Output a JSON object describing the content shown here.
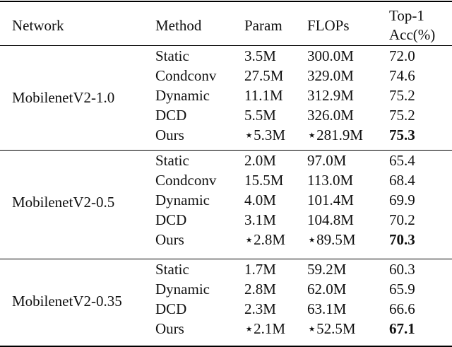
{
  "header": {
    "network": "Network",
    "method": "Method",
    "param": "Param",
    "flops": "FLOPs",
    "acc_line1": "Top-1",
    "acc_line2": "Acc(%)"
  },
  "groups": [
    {
      "network": "MobilenetV2-1.0",
      "rows": [
        {
          "method": "Static",
          "param": "3.5M",
          "flops": "300.0M",
          "acc": "72.0"
        },
        {
          "method": "Condconv",
          "param": "27.5M",
          "flops": "329.0M",
          "acc": "74.6"
        },
        {
          "method": "Dynamic",
          "param": "11.1M",
          "flops": "312.9M",
          "acc": "75.2"
        },
        {
          "method": "DCD",
          "param": "5.5M",
          "flops": "326.0M",
          "acc": "75.2"
        },
        {
          "method": "Ours",
          "param": "⋆5.3M",
          "flops": "⋆281.9M",
          "acc": "75.3",
          "bold": true
        }
      ]
    },
    {
      "network": "MobilenetV2-0.5",
      "rows": [
        {
          "method": "Static",
          "param": "2.0M",
          "flops": "97.0M",
          "acc": "65.4"
        },
        {
          "method": "Condconv",
          "param": "15.5M",
          "flops": "113.0M",
          "acc": "68.4"
        },
        {
          "method": "Dynamic",
          "param": "4.0M",
          "flops": "101.4M",
          "acc": "69.9"
        },
        {
          "method": "DCD",
          "param": "3.1M",
          "flops": "104.8M",
          "acc": "70.2"
        },
        {
          "method": "Ours",
          "param": "⋆2.8M",
          "flops": "⋆89.5M",
          "acc": "70.3",
          "bold": true
        }
      ]
    },
    {
      "network": "MobilenetV2-0.35",
      "rows": [
        {
          "method": "Static",
          "param": "1.7M",
          "flops": "59.2M",
          "acc": "60.3"
        },
        {
          "method": "Dynamic",
          "param": "2.8M",
          "flops": "62.0M",
          "acc": "65.9"
        },
        {
          "method": "DCD",
          "param": "2.3M",
          "flops": "63.1M",
          "acc": "66.6"
        },
        {
          "method": "Ours",
          "param": "⋆2.1M",
          "flops": "⋆52.5M",
          "acc": "67.1",
          "bold": true
        }
      ]
    }
  ]
}
